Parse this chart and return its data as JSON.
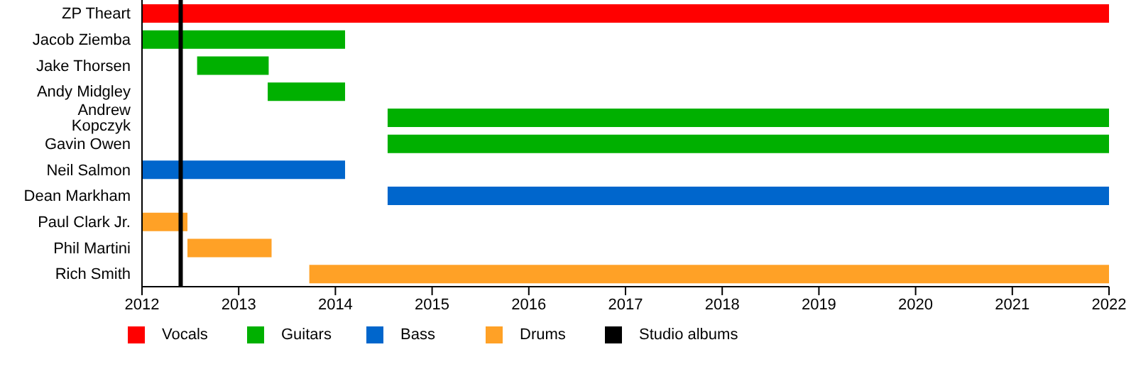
{
  "chart_data": {
    "type": "bar",
    "orientation": "horizontal",
    "categories": [
      "ZP Theart",
      "Jacob Ziemba",
      "Jake Thorsen",
      "Andy Midgley",
      "Andrew Kopczyk",
      "Gavin Owen",
      "Neil Salmon",
      "Dean Markham",
      "Paul Clark Jr.",
      "Phil Martini",
      "Rich Smith"
    ],
    "series": [
      {
        "name": "Vocals",
        "color": "#ff0000",
        "base": [
          2012,
          null,
          null,
          null,
          null,
          null,
          null,
          null,
          null,
          null,
          null
        ],
        "values": [
          10,
          null,
          null,
          null,
          null,
          null,
          null,
          null,
          null,
          null,
          null
        ]
      },
      {
        "name": "Guitars",
        "color": "#00b000",
        "base": [
          null,
          2012,
          2012.57,
          2013.3,
          2014.54,
          2014.54,
          null,
          null,
          null,
          null,
          null
        ],
        "values": [
          null,
          2.1,
          0.74,
          0.8,
          7.46,
          7.46,
          null,
          null,
          null,
          null,
          null
        ]
      },
      {
        "name": "Bass",
        "color": "#0066cc",
        "base": [
          null,
          null,
          null,
          null,
          null,
          null,
          2012,
          2014.54,
          null,
          null,
          null
        ],
        "values": [
          null,
          null,
          null,
          null,
          null,
          null,
          2.1,
          7.46,
          null,
          null,
          null
        ]
      },
      {
        "name": "Drums",
        "color": "#ffa126",
        "base": [
          null,
          null,
          null,
          null,
          null,
          null,
          null,
          null,
          2012,
          2012.47,
          2013.73
        ],
        "values": [
          null,
          null,
          null,
          null,
          null,
          null,
          null,
          null,
          0.47,
          0.87,
          8.27
        ]
      }
    ],
    "ref_lines": [
      {
        "axis": "x",
        "value": 2012.4,
        "label": "Studio albums",
        "color": "#000000"
      }
    ],
    "xlim": [
      2012,
      2022
    ],
    "xticks": [
      2012,
      2013,
      2014,
      2015,
      2016,
      2017,
      2018,
      2019,
      2020,
      2021,
      2022
    ],
    "legend": "bottom"
  }
}
